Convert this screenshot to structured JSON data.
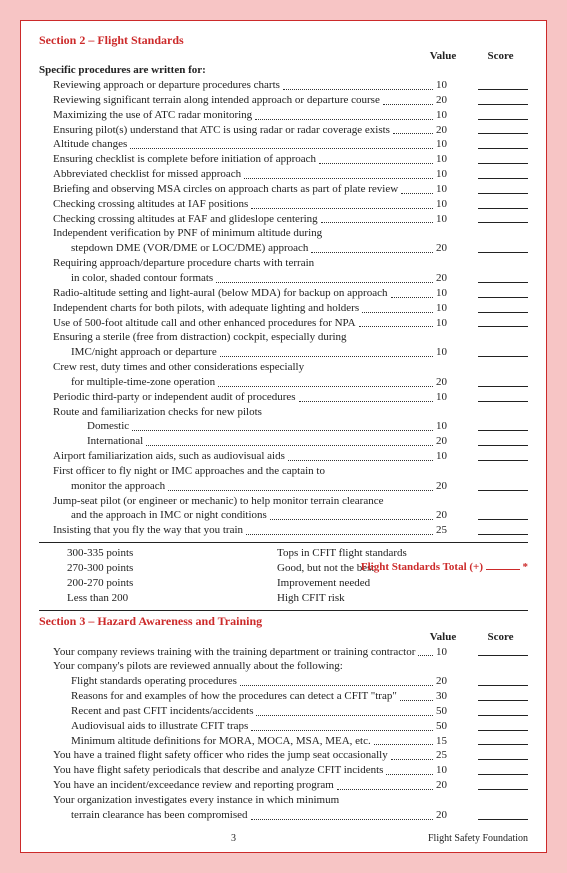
{
  "section2": {
    "title": "Section 2 – Flight Standards",
    "valueHeader": "Value",
    "scoreHeader": "Score",
    "subhead": "Specific procedures are written for:",
    "items": [
      {
        "t": "Reviewing approach or departure procedures charts",
        "v": "10",
        "ind": 1
      },
      {
        "t": "Reviewing significant terrain along intended approach or departure course",
        "v": "20",
        "ind": 1
      },
      {
        "t": "Maximizing the use of ATC radar monitoring",
        "v": "10",
        "ind": 1
      },
      {
        "t": "Ensuring pilot(s) understand that ATC is using radar or radar coverage exists",
        "v": "20",
        "ind": 1
      },
      {
        "t": "Altitude changes",
        "v": "10",
        "ind": 1
      },
      {
        "t": "Ensuring checklist is complete before initiation of approach",
        "v": "10",
        "ind": 1
      },
      {
        "t": "Abbreviated checklist for missed approach",
        "v": "10",
        "ind": 1
      },
      {
        "t": "Briefing and observing MSA circles on approach charts as part of plate review",
        "v": "10",
        "ind": 1
      },
      {
        "t": "Checking crossing altitudes at IAF positions",
        "v": "10",
        "ind": 1
      },
      {
        "t": "Checking crossing altitudes at FAF and glideslope centering",
        "v": "10",
        "ind": 1
      },
      {
        "t": "Independent verification by PNF of minimum altitude during",
        "cont": "stepdown DME (VOR/DME or LOC/DME) approach",
        "v": "20",
        "ind": 1
      },
      {
        "t": "Requiring approach/departure procedure charts with terrain",
        "cont": "in color, shaded contour formats",
        "v": "20",
        "ind": 1
      },
      {
        "t": "Radio-altitude setting and light-aural (below MDA) for backup on approach",
        "v": "10",
        "ind": 1
      },
      {
        "t": "Independent charts for both pilots, with adequate lighting and holders",
        "v": "10",
        "ind": 1
      },
      {
        "t": "Use of 500-foot altitude call and other enhanced procedures for NPA",
        "v": "10",
        "ind": 1
      },
      {
        "t": "Ensuring a sterile (free from distraction) cockpit, especially during",
        "cont": "IMC/night approach or departure",
        "v": "10",
        "ind": 1
      },
      {
        "t": "Crew rest, duty times and other considerations especially",
        "cont": "for multiple-time-zone operation",
        "v": "20",
        "ind": 1
      },
      {
        "t": "Periodic third-party or independent audit of procedures",
        "v": "10",
        "ind": 1
      },
      {
        "t": "Route and familiarization checks for new pilots",
        "ind": 1,
        "nov": true
      },
      {
        "t": "Domestic",
        "v": "10",
        "ind": 3
      },
      {
        "t": "International",
        "v": "20",
        "ind": 3
      },
      {
        "t": "Airport familiarization aids, such as audiovisual aids",
        "v": "10",
        "ind": 1
      },
      {
        "t": "First officer to fly night or IMC approaches and the captain to",
        "cont": "monitor the approach",
        "v": "20",
        "ind": 1
      },
      {
        "t": "Jump-seat pilot (or engineer or mechanic) to help monitor terrain clearance",
        "cont": "and the approach in IMC or night conditions",
        "v": "20",
        "ind": 1
      },
      {
        "t": "Insisting that you fly the way that you train",
        "v": "25",
        "ind": 1
      }
    ],
    "ratings": [
      {
        "range": "300-335 points",
        "desc": "Tops in CFIT flight standards"
      },
      {
        "range": "270-300 points",
        "desc": "Good, but not the best"
      },
      {
        "range": "200-270 points",
        "desc": "Improvement needed"
      },
      {
        "range": "Less than 200",
        "desc": "High CFIT risk"
      }
    ],
    "totalLabel": "Flight Standards Total  (+)",
    "totalAst": "*"
  },
  "section3": {
    "title": "Section 3 – Hazard Awareness and Training",
    "valueHeader": "Value",
    "scoreHeader": "Score",
    "items": [
      {
        "t": "Your company reviews training with the training department or training contractor",
        "v": "10",
        "ind": 1
      },
      {
        "t": "Your company's pilots are reviewed annually about the following:",
        "ind": 1,
        "nov": true
      },
      {
        "t": "Flight standards operating procedures",
        "v": "20",
        "ind": 2
      },
      {
        "t": "Reasons for and examples of how the procedures can detect a CFIT \"trap\"",
        "v": "30",
        "ind": 2
      },
      {
        "t": "Recent and past CFIT incidents/accidents",
        "v": "50",
        "ind": 2
      },
      {
        "t": "Audiovisual aids to illustrate CFIT traps",
        "v": "50",
        "ind": 2
      },
      {
        "t": "Minimum altitude definitions for MORA, MOCA, MSA, MEA, etc.",
        "v": "15",
        "ind": 2
      },
      {
        "t": "You have a trained flight safety officer who rides the jump seat occasionally",
        "v": "25",
        "ind": 1
      },
      {
        "t": "You have flight safety periodicals that describe and analyze CFIT incidents",
        "v": "10",
        "ind": 1
      },
      {
        "t": "You have an incident/exceedance review and reporting program",
        "v": "20",
        "ind": 1
      },
      {
        "t": "Your organization investigates every instance in which minimum",
        "cont": "terrain clearance has been compromised",
        "v": "20",
        "ind": 1
      }
    ]
  },
  "footer": {
    "page": "3",
    "org": "Flight Safety Foundation"
  }
}
